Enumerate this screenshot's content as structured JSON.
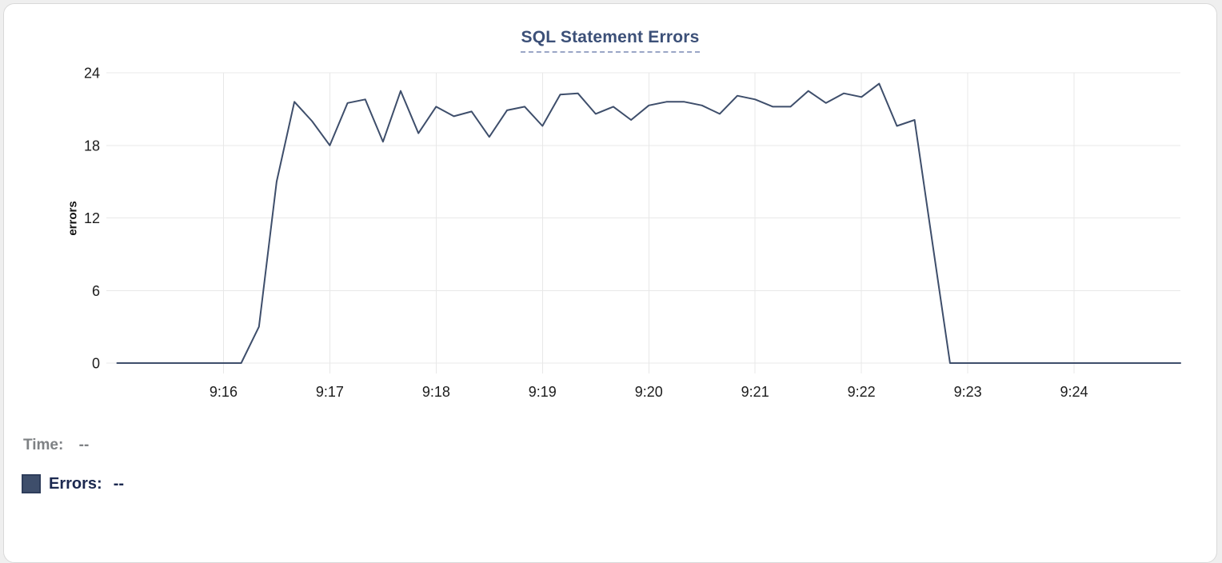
{
  "panel": {
    "background": "#ffffff",
    "border_color": "#d9d9d9",
    "page_background": "#efefef"
  },
  "chart_data": {
    "type": "line",
    "title": "SQL Statement Errors",
    "xlabel": "",
    "ylabel": "errors",
    "ylim": [
      0,
      24
    ],
    "yticks": [
      0,
      6,
      12,
      18,
      24
    ],
    "xticks": [
      "9:16",
      "9:17",
      "9:18",
      "9:19",
      "9:20",
      "9:21",
      "9:22",
      "9:23",
      "9:24"
    ],
    "x_range": [
      "9:15:00",
      "9:25:00"
    ],
    "grid": true,
    "legend_position": "bottom-left",
    "line_color": "#3e4e6b",
    "grid_color": "#e8e8e8",
    "tick_label_color": "#1c1c1c",
    "title_color": "#3c5078",
    "title_underline_color": "#9aa6c6",
    "series": [
      {
        "name": "Errors",
        "x": [
          "9:15:00",
          "9:15:10",
          "9:15:20",
          "9:15:30",
          "9:15:40",
          "9:15:50",
          "9:16:00",
          "9:16:10",
          "9:16:20",
          "9:16:30",
          "9:16:40",
          "9:16:50",
          "9:17:00",
          "9:17:10",
          "9:17:20",
          "9:17:30",
          "9:17:40",
          "9:17:50",
          "9:18:00",
          "9:18:10",
          "9:18:20",
          "9:18:30",
          "9:18:40",
          "9:18:50",
          "9:19:00",
          "9:19:10",
          "9:19:20",
          "9:19:30",
          "9:19:40",
          "9:19:50",
          "9:20:00",
          "9:20:10",
          "9:20:20",
          "9:20:30",
          "9:20:40",
          "9:20:50",
          "9:21:00",
          "9:21:10",
          "9:21:20",
          "9:21:30",
          "9:21:40",
          "9:21:50",
          "9:22:00",
          "9:22:10",
          "9:22:20",
          "9:22:30",
          "9:22:40",
          "9:22:50",
          "9:23:00",
          "9:23:10",
          "9:23:20",
          "9:23:30",
          "9:23:40",
          "9:23:50",
          "9:24:00",
          "9:24:10",
          "9:24:20",
          "9:24:30",
          "9:24:40",
          "9:24:50",
          "9:25:00"
        ],
        "values": [
          0,
          0,
          0,
          0,
          0,
          0,
          0,
          0,
          3,
          15,
          21.6,
          20,
          18,
          21.5,
          21.8,
          18.3,
          22.5,
          19,
          21.2,
          20.4,
          20.8,
          18.7,
          20.9,
          21.2,
          19.6,
          22.2,
          22.3,
          20.6,
          21.2,
          20.1,
          21.3,
          21.6,
          21.6,
          21.3,
          20.6,
          22.1,
          21.8,
          21.2,
          21.2,
          22.5,
          21.5,
          22.3,
          22,
          23.1,
          19.6,
          20.1,
          10,
          0,
          0,
          0,
          0,
          0,
          0,
          0,
          0,
          0,
          0,
          0,
          0,
          0,
          0
        ]
      }
    ]
  },
  "tooltip": {
    "time_label": "Time:",
    "time_value": "--",
    "errors_label": "Errors:",
    "errors_value": "--",
    "time_color": "#7e8184",
    "errors_color": "#1c2950",
    "swatch_color": "#3e4e6b",
    "swatch_border_color": "#2e3d5b"
  }
}
